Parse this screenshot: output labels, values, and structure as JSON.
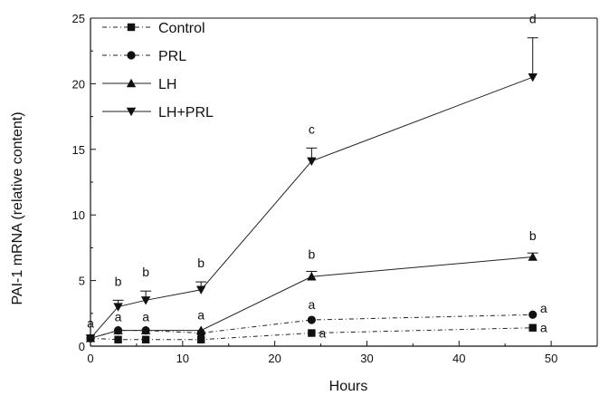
{
  "chart_data": {
    "type": "line",
    "xlabel": "Hours",
    "ylabel": "PAI-1 mRNA (relative content)",
    "xlim": [
      0,
      55
    ],
    "ylim": [
      0,
      25
    ],
    "xticks": [
      0,
      10,
      20,
      30,
      40,
      50
    ],
    "yticks": [
      0,
      5,
      10,
      15,
      20,
      25
    ],
    "grid": false,
    "legend_position": "top-left",
    "x": [
      0,
      3,
      6,
      12,
      24,
      48
    ],
    "series": [
      {
        "name": "Control",
        "marker": "square",
        "line_style": "dash-dot",
        "values": [
          0.6,
          0.5,
          0.5,
          0.5,
          1.0,
          1.4
        ],
        "errors": [
          0,
          0,
          0,
          0,
          0,
          0
        ],
        "labels": [
          "",
          "",
          "",
          "",
          "a",
          "a"
        ]
      },
      {
        "name": "PRL",
        "marker": "circle",
        "line_style": "dash-dot",
        "values": [
          0.6,
          1.2,
          1.2,
          1.0,
          2.0,
          2.4
        ],
        "errors": [
          0,
          0,
          0,
          0,
          0,
          0
        ],
        "labels": [
          "",
          "a",
          "a",
          "",
          "a",
          "a"
        ]
      },
      {
        "name": "LH",
        "marker": "triangle-up",
        "line_style": "solid",
        "values": [
          0.6,
          1.2,
          1.2,
          1.2,
          5.3,
          6.8
        ],
        "errors": [
          0,
          0,
          0,
          0,
          0.4,
          0.3
        ],
        "labels": [
          "",
          "",
          "",
          "a",
          "b",
          "b"
        ]
      },
      {
        "name": "LH+PRL",
        "marker": "triangle-down",
        "line_style": "solid",
        "values": [
          0.6,
          3.0,
          3.5,
          4.3,
          14.1,
          20.5
        ],
        "errors": [
          0,
          0.5,
          0.7,
          0.6,
          1.0,
          3.0
        ],
        "labels": [
          "a",
          "b",
          "b",
          "b",
          "c",
          "d"
        ]
      }
    ]
  }
}
